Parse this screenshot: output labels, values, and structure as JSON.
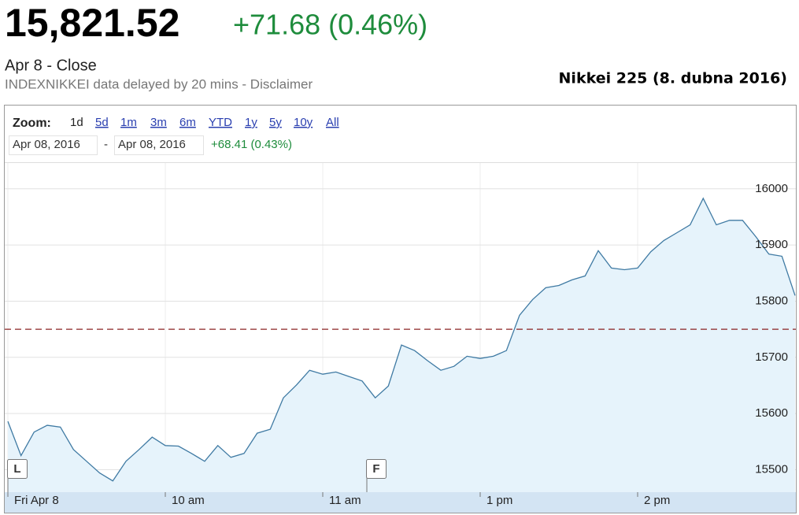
{
  "header": {
    "price": "15,821.52",
    "change": "+71.68 (0.46%)",
    "status": "Apr 8 - Close",
    "note": "INDEXNIKKEI data delayed by 20 mins - Disclaimer",
    "caption": "Nikkei 225 (8. dubna 2016)"
  },
  "zoom": {
    "label": "Zoom:",
    "options": [
      "1d",
      "5d",
      "1m",
      "3m",
      "6m",
      "YTD",
      "1y",
      "5y",
      "10y",
      "All"
    ]
  },
  "range": {
    "start": "Apr 08, 2016",
    "separator": "-",
    "end": "Apr 08, 2016",
    "change": "+68.41 (0.43%)"
  },
  "chart_data": {
    "type": "area",
    "categories": [
      "Fri Apr 8",
      null,
      null,
      null,
      null,
      null,
      null,
      null,
      null,
      null,
      null,
      null,
      "10 am",
      null,
      null,
      null,
      null,
      null,
      null,
      null,
      null,
      null,
      null,
      null,
      "11 am",
      null,
      null,
      null,
      null,
      null,
      null,
      null,
      null,
      null,
      null,
      null,
      "1 pm",
      null,
      null,
      null,
      null,
      null,
      null,
      null,
      null,
      null,
      null,
      null,
      "2 pm",
      null,
      null,
      null,
      null,
      null,
      null,
      null,
      null,
      null,
      null,
      null,
      null
    ],
    "values": [
      15586,
      15525,
      15567,
      15579,
      15576,
      15536,
      15515,
      15494,
      15480,
      15515,
      15536,
      15558,
      15543,
      15542,
      15529,
      15515,
      15543,
      15522,
      15529,
      15565,
      15572,
      15628,
      15651,
      15677,
      15670,
      15674,
      15666,
      15658,
      15628,
      15649,
      15722,
      15712,
      15694,
      15677,
      15684,
      15702,
      15698,
      15702,
      15712,
      15775,
      15803,
      15824,
      15828,
      15838,
      15845,
      15890,
      15859,
      15856,
      15859,
      15888,
      15908,
      15922,
      15936,
      15983,
      15936,
      15944,
      15944,
      15915,
      15884,
      15880,
      15810
    ],
    "color": "#3f7aa3",
    "fill": "#e6f3fb",
    "ylim": [
      15460,
      16046
    ],
    "yticks": [
      15500,
      15600,
      15700,
      15800,
      15900,
      16000
    ],
    "reference_line": 15750,
    "reference_color": "#8b2323",
    "grid": true,
    "flags": [
      "L",
      "F"
    ]
  }
}
